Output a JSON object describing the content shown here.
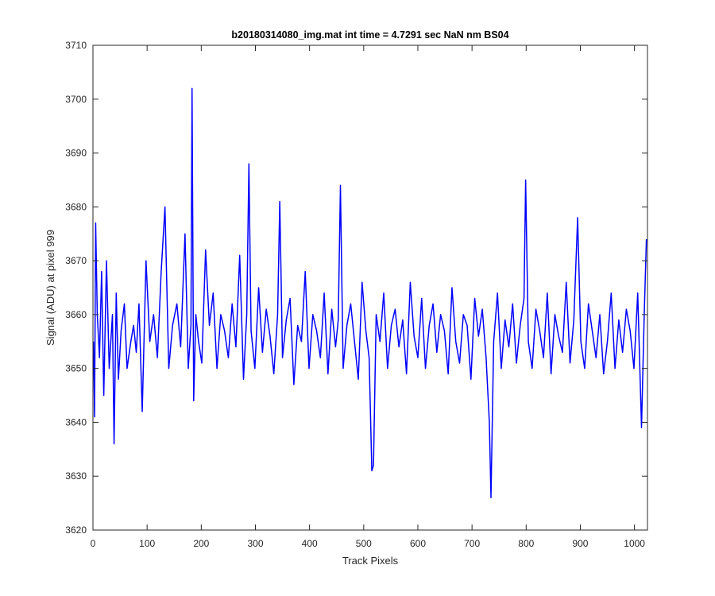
{
  "chart_data": {
    "type": "line",
    "title": "b20180314080_img.mat int time = 4.7291 sec  NaN nm BS04",
    "xlabel": "Track Pixels",
    "ylabel": "Signal (ADU) at pixel 999",
    "xlim": [
      0,
      1024
    ],
    "ylim": [
      3620,
      3710
    ],
    "xticks": [
      0,
      100,
      200,
      300,
      400,
      500,
      600,
      700,
      800,
      900,
      1000
    ],
    "yticks": [
      3620,
      3630,
      3640,
      3650,
      3660,
      3670,
      3680,
      3690,
      3700,
      3710
    ],
    "grid": false,
    "series_color": "#0000ff",
    "series": [
      {
        "x": [
          1,
          3,
          5,
          8,
          12,
          16,
          20,
          25,
          30,
          36,
          39,
          43,
          47,
          52,
          58,
          63,
          70,
          75,
          80,
          85,
          91,
          98,
          105,
          112,
          119,
          126,
          133,
          140,
          147,
          155,
          162,
          170,
          176,
          181,
          183,
          186,
          190,
          195,
          201,
          208,
          215,
          222,
          229,
          236,
          243,
          250,
          257,
          264,
          271,
          278,
          284,
          288,
          292,
          299,
          306,
          313,
          320,
          327,
          334,
          341,
          345,
          350,
          357,
          364,
          371,
          378,
          385,
          392,
          399,
          406,
          413,
          420,
          427,
          434,
          441,
          448,
          453,
          457,
          462,
          469,
          476,
          483,
          490,
          497,
          504,
          510,
          515,
          518,
          523,
          530,
          537,
          544,
          551,
          558,
          565,
          572,
          579,
          586,
          593,
          600,
          607,
          614,
          621,
          628,
          635,
          642,
          649,
          656,
          663,
          670,
          677,
          684,
          691,
          698,
          705,
          712,
          719,
          726,
          732,
          735,
          740,
          747,
          754,
          761,
          768,
          775,
          782,
          789,
          796,
          799,
          804,
          811,
          818,
          825,
          832,
          839,
          846,
          853,
          860,
          867,
          874,
          881,
          888,
          895,
          901,
          908,
          915,
          922,
          929,
          936,
          943,
          950,
          957,
          964,
          971,
          978,
          985,
          992,
          999,
          1006,
          1013,
          1018,
          1022
        ],
        "y": [
          3655,
          3641,
          3677,
          3660,
          3652,
          3668,
          3645,
          3670,
          3650,
          3660,
          3636,
          3664,
          3648,
          3657,
          3662,
          3650,
          3655,
          3658,
          3653,
          3662,
          3642,
          3670,
          3655,
          3660,
          3652,
          3668,
          3680,
          3650,
          3658,
          3662,
          3654,
          3675,
          3650,
          3658,
          3702,
          3644,
          3660,
          3655,
          3651,
          3672,
          3658,
          3664,
          3650,
          3660,
          3657,
          3652,
          3662,
          3654,
          3671,
          3648,
          3660,
          3688,
          3657,
          3650,
          3665,
          3653,
          3661,
          3656,
          3649,
          3660,
          3681,
          3652,
          3659,
          3663,
          3647,
          3658,
          3655,
          3668,
          3650,
          3660,
          3657,
          3652,
          3664,
          3649,
          3661,
          3654,
          3659,
          3684,
          3650,
          3658,
          3662,
          3655,
          3648,
          3666,
          3657,
          3652,
          3631,
          3632,
          3660,
          3655,
          3664,
          3650,
          3658,
          3661,
          3654,
          3659,
          3649,
          3666,
          3656,
          3652,
          3663,
          3650,
          3658,
          3662,
          3653,
          3660,
          3657,
          3649,
          3665,
          3655,
          3651,
          3660,
          3658,
          3648,
          3663,
          3656,
          3661,
          3652,
          3640,
          3626,
          3655,
          3664,
          3650,
          3659,
          3654,
          3662,
          3651,
          3658,
          3663,
          3685,
          3655,
          3650,
          3661,
          3657,
          3652,
          3664,
          3649,
          3660,
          3656,
          3653,
          3666,
          3651,
          3659,
          3678,
          3655,
          3650,
          3662,
          3657,
          3652,
          3660,
          3649,
          3655,
          3664,
          3650,
          3659,
          3653,
          3661,
          3657,
          3650,
          3664,
          3639,
          3660,
          3674
        ]
      }
    ]
  }
}
